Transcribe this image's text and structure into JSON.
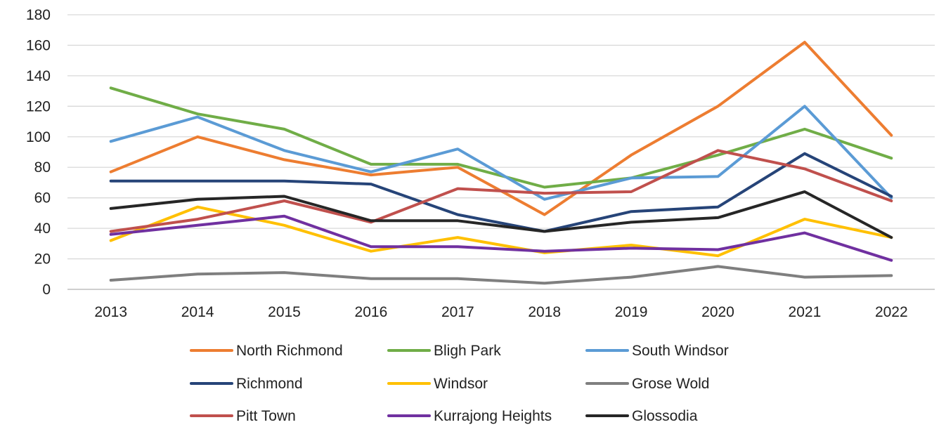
{
  "chart_data": {
    "type": "line",
    "title": "",
    "xlabel": "",
    "ylabel": "",
    "ylim": [
      0,
      180
    ],
    "yticks": [
      0,
      20,
      40,
      60,
      80,
      100,
      120,
      140,
      160,
      180
    ],
    "grid": true,
    "legend_position": "bottom",
    "categories": [
      "2013",
      "2014",
      "2015",
      "2016",
      "2017",
      "2018",
      "2019",
      "2020",
      "2021",
      "2022"
    ],
    "series": [
      {
        "name": "North Richmond",
        "color": "#ED7D31",
        "values": [
          77,
          100,
          85,
          75,
          80,
          49,
          88,
          120,
          162,
          101
        ]
      },
      {
        "name": "Bligh Park",
        "color": "#70AD47",
        "values": [
          132,
          115,
          105,
          82,
          82,
          67,
          73,
          88,
          105,
          86
        ]
      },
      {
        "name": "South Windsor",
        "color": "#5B9BD5",
        "values": [
          97,
          113,
          91,
          77,
          92,
          59,
          73,
          74,
          120,
          60
        ]
      },
      {
        "name": "Richmond",
        "color": "#264478",
        "values": [
          71,
          71,
          71,
          69,
          49,
          38,
          51,
          54,
          89,
          61
        ]
      },
      {
        "name": "Windsor",
        "color": "#FFC000",
        "values": [
          32,
          54,
          42,
          25,
          34,
          24,
          29,
          22,
          46,
          34
        ]
      },
      {
        "name": "Grose Wold",
        "color": "#7F7F7F",
        "values": [
          6,
          10,
          11,
          7,
          7,
          4,
          8,
          15,
          8,
          9
        ]
      },
      {
        "name": "Pitt Town",
        "color": "#C0504D",
        "values": [
          38,
          46,
          58,
          44,
          66,
          63,
          64,
          91,
          79,
          58
        ]
      },
      {
        "name": "Kurrajong Heights",
        "color": "#7030A0",
        "values": [
          36,
          42,
          48,
          28,
          28,
          25,
          27,
          26,
          37,
          19
        ]
      },
      {
        "name": "Glossodia",
        "color": "#262626",
        "values": [
          53,
          59,
          61,
          45,
          45,
          38,
          44,
          47,
          64,
          34
        ]
      }
    ]
  }
}
